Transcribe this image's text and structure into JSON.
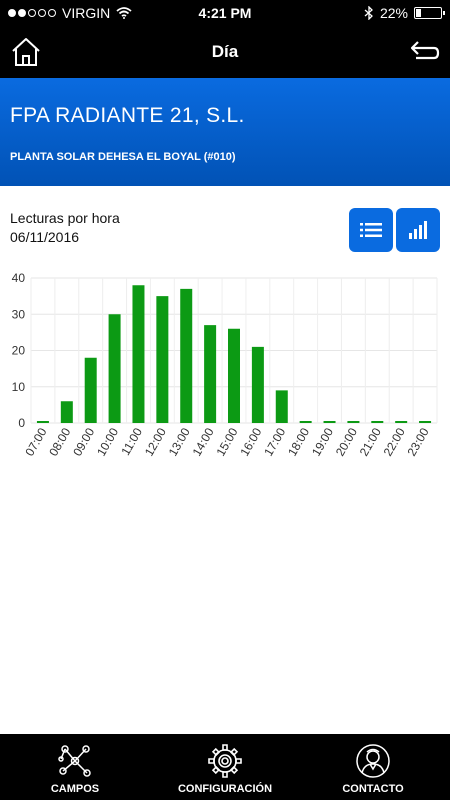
{
  "status_bar": {
    "carrier": "VIRGIN",
    "time": "4:21 PM",
    "battery": "22%",
    "battery_level": 0.22,
    "signal_bars": 2
  },
  "nav": {
    "title": "Día"
  },
  "company": {
    "name": "FPA RADIANTE 21, S.L.",
    "plant": "PLANTA SOLAR DEHESA EL BOYAL (#010)"
  },
  "readings": {
    "title": "Lecturas por hora",
    "date": "06/11/2016"
  },
  "colors": {
    "accent": "#0a6be0",
    "bar": "#0c9a14"
  },
  "chart_data": {
    "type": "bar",
    "categories": [
      "07:00",
      "08:00",
      "09:00",
      "10:00",
      "11:00",
      "12:00",
      "13:00",
      "14:00",
      "15:00",
      "16:00",
      "17:00",
      "18:00",
      "19:00",
      "20:00",
      "21:00",
      "22:00",
      "23:00"
    ],
    "values": [
      0,
      6,
      18,
      30,
      38,
      35,
      37,
      27,
      26,
      21,
      9,
      0,
      0,
      0,
      0,
      0,
      0
    ],
    "ylim": [
      0,
      40
    ],
    "yticks": [
      0,
      10,
      20,
      30,
      40
    ],
    "grid": true,
    "legend": "none"
  },
  "tabs": [
    {
      "label": "CAMPOS",
      "icon": "network-icon"
    },
    {
      "label": "CONFIGURACIÓN",
      "icon": "gear-icon"
    },
    {
      "label": "CONTACTO",
      "icon": "contact-person-icon"
    }
  ]
}
